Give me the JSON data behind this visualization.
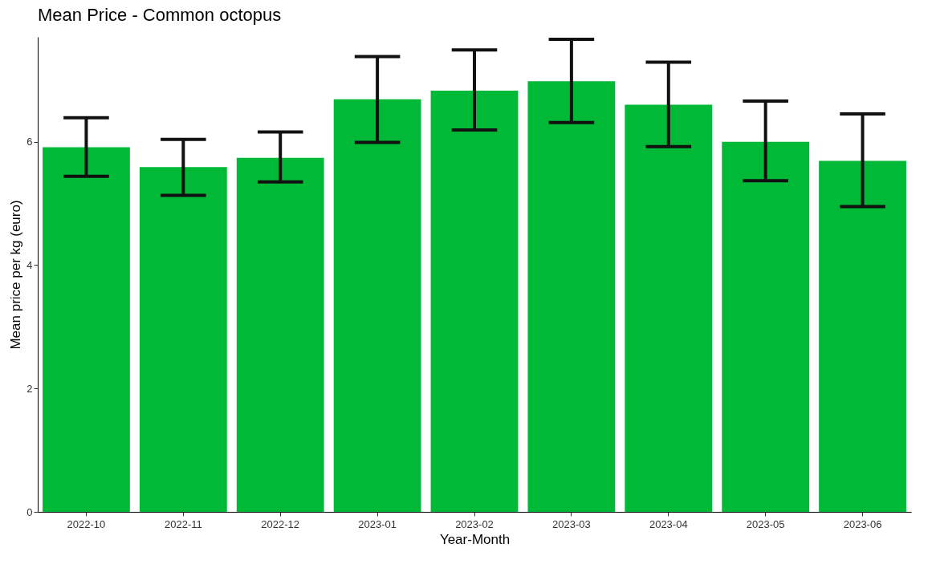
{
  "chart_data": {
    "type": "bar",
    "title": "Mean Price - Common octopus",
    "xlabel": "Year-Month",
    "ylabel": "Mean price per kg (euro)",
    "categories": [
      "2022-10",
      "2022-11",
      "2022-12",
      "2023-01",
      "2023-02",
      "2023-03",
      "2023-04",
      "2023-05",
      "2023-06"
    ],
    "values": [
      5.91,
      5.59,
      5.74,
      6.69,
      6.83,
      6.98,
      6.6,
      6.0,
      5.69
    ],
    "errors": [
      [
        5.44,
        6.39
      ],
      [
        5.13,
        6.04
      ],
      [
        5.35,
        6.16
      ],
      [
        5.99,
        7.38
      ],
      [
        6.19,
        7.49
      ],
      [
        6.31,
        7.66
      ],
      [
        5.92,
        7.29
      ],
      [
        5.37,
        6.66
      ],
      [
        4.95,
        6.45
      ]
    ],
    "color": "#00b936",
    "ylim": [
      0,
      7.7
    ],
    "yticks": [
      0,
      2,
      4,
      6
    ],
    "grid": false
  }
}
